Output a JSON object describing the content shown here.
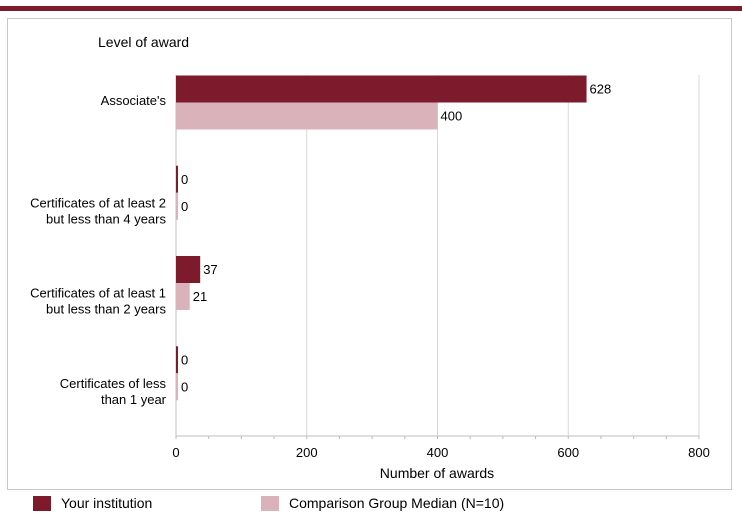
{
  "chart_data": {
    "type": "bar",
    "orientation": "horizontal",
    "title": "Level of award",
    "xlabel": "Number of awards",
    "categories": [
      [
        "Associate's"
      ],
      [
        "Certificates of at least 2",
        "but less than 4 years"
      ],
      [
        "Certificates of at least 1",
        "but  less than 2 years"
      ],
      [
        "Certificates of less",
        "than 1 year"
      ]
    ],
    "series": [
      {
        "name": "Your institution",
        "color": "#7d1a2c",
        "values": [
          628,
          0,
          37,
          0
        ]
      },
      {
        "name": "Comparison Group Median (N=10)",
        "color": "#d9b3b9",
        "values": [
          400,
          0,
          21,
          0
        ]
      }
    ],
    "xlim": [
      0,
      800
    ],
    "xticks": [
      0,
      200,
      400,
      600,
      800
    ],
    "grid": true,
    "legend_position": "bottom"
  }
}
